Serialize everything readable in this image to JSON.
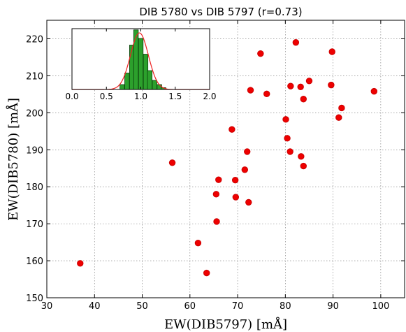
{
  "chart_data": [
    {
      "type": "scatter",
      "title": "DIB 5780 vs DIB 5797 (r=0.73)",
      "xlabel": "EW(DIB5797) [mÅ]",
      "ylabel": "EW(DIB5780) [mÅ]",
      "xlim": [
        30,
        105
      ],
      "ylim": [
        150,
        225
      ],
      "xticks": [
        30,
        40,
        50,
        60,
        70,
        80,
        90,
        100
      ],
      "yticks": [
        150,
        160,
        170,
        180,
        190,
        200,
        210,
        220
      ],
      "grid": true,
      "color": "#ee0000",
      "points": [
        {
          "x": 37,
          "y": 159.3
        },
        {
          "x": 56.3,
          "y": 186.5
        },
        {
          "x": 61.7,
          "y": 164.8
        },
        {
          "x": 63.5,
          "y": 156.7
        },
        {
          "x": 65.5,
          "y": 178.0
        },
        {
          "x": 65.6,
          "y": 170.6
        },
        {
          "x": 66.0,
          "y": 181.9
        },
        {
          "x": 68.8,
          "y": 195.5
        },
        {
          "x": 69.5,
          "y": 181.8
        },
        {
          "x": 69.6,
          "y": 177.2
        },
        {
          "x": 71.5,
          "y": 184.6
        },
        {
          "x": 72.0,
          "y": 189.5
        },
        {
          "x": 72.3,
          "y": 175.8
        },
        {
          "x": 72.7,
          "y": 206.1
        },
        {
          "x": 74.8,
          "y": 216.0
        },
        {
          "x": 76.1,
          "y": 205.1
        },
        {
          "x": 80.1,
          "y": 198.2
        },
        {
          "x": 80.4,
          "y": 193.1
        },
        {
          "x": 81.0,
          "y": 189.5
        },
        {
          "x": 81.1,
          "y": 207.2
        },
        {
          "x": 82.2,
          "y": 219.0
        },
        {
          "x": 83.2,
          "y": 207.0
        },
        {
          "x": 83.3,
          "y": 188.2
        },
        {
          "x": 83.8,
          "y": 185.6
        },
        {
          "x": 83.8,
          "y": 203.7
        },
        {
          "x": 85.0,
          "y": 208.6
        },
        {
          "x": 89.6,
          "y": 207.5
        },
        {
          "x": 89.8,
          "y": 216.5
        },
        {
          "x": 91.2,
          "y": 198.7
        },
        {
          "x": 91.8,
          "y": 201.3
        },
        {
          "x": 98.6,
          "y": 205.8
        }
      ]
    },
    {
      "type": "bar",
      "title": "",
      "xlabel": "",
      "ylabel": "",
      "xlim": [
        0,
        2
      ],
      "ylim": [
        0,
        1
      ],
      "xticks": [
        0.0,
        0.5,
        1.0,
        1.5,
        2.0
      ],
      "xtick_labels": [
        "0.0",
        "0.5",
        "1.0",
        "1.5",
        "2.0"
      ],
      "bar_color": "#2ca02c",
      "fit_color": "#ee2222",
      "bin_width": 0.0667,
      "bins": [
        {
          "x": 0.73,
          "value": 0.08
        },
        {
          "x": 0.8,
          "value": 0.27
        },
        {
          "x": 0.87,
          "value": 0.73
        },
        {
          "x": 0.93,
          "value": 0.98
        },
        {
          "x": 1.0,
          "value": 0.84
        },
        {
          "x": 1.07,
          "value": 0.58
        },
        {
          "x": 1.13,
          "value": 0.31
        },
        {
          "x": 1.2,
          "value": 0.15
        },
        {
          "x": 1.27,
          "value": 0.08
        },
        {
          "x": 1.33,
          "value": 0.03
        }
      ],
      "fit": {
        "mean": 0.98,
        "sigma": 0.13,
        "peak": 0.93
      }
    }
  ]
}
